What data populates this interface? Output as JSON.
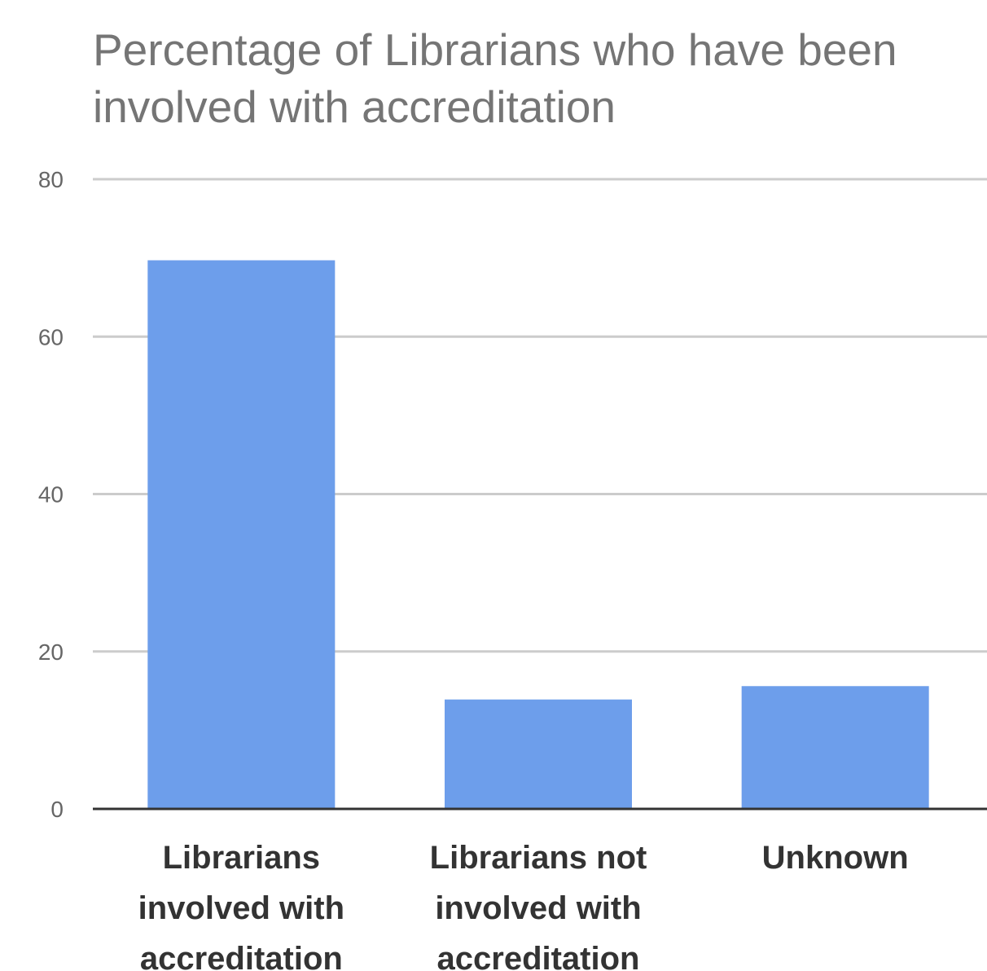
{
  "chart_data": {
    "type": "bar",
    "title_lines": [
      "Percentage of Librarians who have been",
      "involved with accreditation"
    ],
    "categories": [
      [
        "Librarians",
        "involved with",
        "accreditation"
      ],
      [
        "Librarians not",
        "involved with",
        "accreditation"
      ],
      [
        "Unknown"
      ]
    ],
    "values": [
      69.7,
      13.9,
      15.6
    ],
    "ylim": [
      0,
      80
    ],
    "yticks": [
      "0",
      "20",
      "40",
      "60",
      "80"
    ],
    "grid": true,
    "legend": "none",
    "xlabel": "",
    "ylabel": "",
    "colors": {
      "bar": "#6d9eeb",
      "grid": "#cccccc",
      "baseline": "#333333"
    }
  }
}
